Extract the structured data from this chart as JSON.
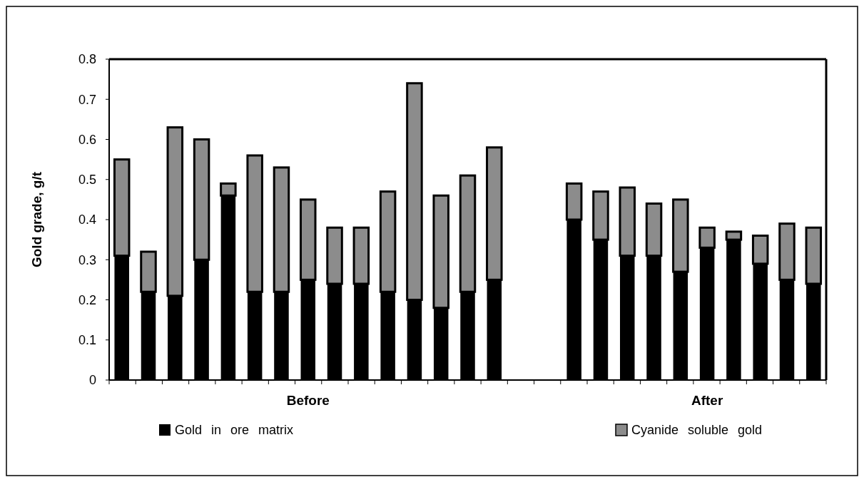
{
  "chart_data": {
    "type": "bar",
    "stacked": true,
    "ylabel": "Gold grade, g/t",
    "categories": [
      null,
      null,
      null,
      null,
      null,
      null,
      null,
      "Before",
      null,
      null,
      null,
      null,
      null,
      null,
      null,
      null,
      null,
      null,
      null,
      null,
      null,
      null,
      "After",
      null,
      null,
      null,
      null
    ],
    "series": [
      {
        "name": "Gold in ore matrix",
        "color": "#000000",
        "values": [
          0.31,
          0.22,
          0.21,
          0.3,
          0.46,
          0.22,
          0.22,
          0.25,
          0.24,
          0.24,
          0.22,
          0.2,
          0.18,
          0.22,
          0.25,
          null,
          null,
          0.4,
          0.35,
          0.31,
          0.31,
          0.27,
          0.33,
          0.35,
          0.29,
          0.25,
          0.24
        ]
      },
      {
        "name": "Cyanide soluble gold",
        "color": "#8c8c8c",
        "values": [
          0.24,
          0.1,
          0.42,
          0.3,
          0.03,
          0.34,
          0.31,
          0.2,
          0.14,
          0.14,
          0.25,
          0.54,
          0.28,
          0.29,
          0.33,
          null,
          null,
          0.09,
          0.12,
          0.17,
          0.13,
          0.18,
          0.05,
          0.02,
          0.07,
          0.14,
          0.14
        ]
      }
    ],
    "ylim": [
      0,
      0.8
    ],
    "yticks": [
      0,
      0.1,
      0.2,
      0.3,
      0.4,
      0.5,
      0.6,
      0.7,
      0.8
    ],
    "legend": "bottom",
    "grid": false
  }
}
